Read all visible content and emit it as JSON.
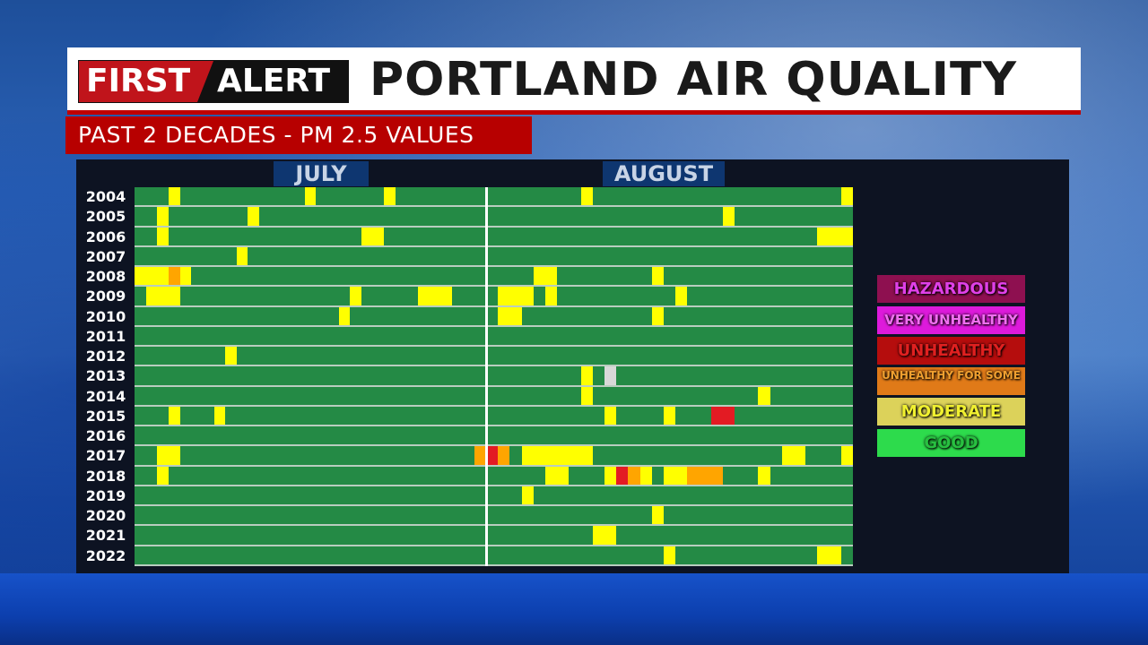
{
  "header": {
    "logo_first": "FIRST",
    "logo_alert": "ALERT",
    "title": "PORTLAND AIR QUALITY",
    "subtitle": "PAST 2 DECADES - PM 2.5 VALUES"
  },
  "chart_data": {
    "type": "heatmap",
    "title": "PORTLAND AIR QUALITY",
    "subtitle": "PAST 2 DECADES - PM 2.5 VALUES",
    "x_groups": [
      "JULY",
      "AUGUST"
    ],
    "x_range": [
      "Jul 1",
      "Aug 31"
    ],
    "default_level": "good",
    "levels": [
      {
        "key": "hazardous",
        "label": "HAZARDOUS",
        "color": "#8e1050",
        "text": "#e040e8"
      },
      {
        "key": "very_unhealthy",
        "label": "VERY UNHEALTHY",
        "color": "#dd1adb",
        "text": "#f070f0"
      },
      {
        "key": "unhealthy",
        "label": "UNHEALTHY",
        "color": "#b50d0d",
        "text": "#e02020"
      },
      {
        "key": "usg",
        "label": "UNHEALTHY FOR SOME",
        "color": "#e07a18",
        "text": "#f0a030"
      },
      {
        "key": "moderate",
        "label": "MODERATE",
        "color": "#dcd25a",
        "text": "#f0f030"
      },
      {
        "key": "good",
        "label": "GOOD",
        "color": "#2ddb4c",
        "text": "#28c040"
      }
    ],
    "cell_colors": {
      "good": "#248a45",
      "moderate": "#ffff00",
      "usg": "#ffa500",
      "unhealthy": "#e31b23",
      "nodata": "#d8d8d8"
    },
    "rows": [
      {
        "year": "2004",
        "events": [
          [
            "Jul",
            4,
            1,
            "moderate"
          ],
          [
            "Jul",
            16,
            1,
            "moderate"
          ],
          [
            "Jul",
            23,
            1,
            "moderate"
          ],
          [
            "Aug",
            9,
            1,
            "moderate"
          ],
          [
            "Aug",
            31,
            1,
            "moderate"
          ]
        ]
      },
      {
        "year": "2005",
        "events": [
          [
            "Jul",
            3,
            1,
            "moderate"
          ],
          [
            "Jul",
            11,
            1,
            "moderate"
          ],
          [
            "Aug",
            21,
            1,
            "moderate"
          ]
        ]
      },
      {
        "year": "2006",
        "events": [
          [
            "Jul",
            3,
            1,
            "moderate"
          ],
          [
            "Jul",
            21,
            2,
            "moderate"
          ],
          [
            "Aug",
            29,
            3,
            "moderate"
          ]
        ]
      },
      {
        "year": "2007",
        "events": [
          [
            "Jul",
            10,
            1,
            "moderate"
          ]
        ]
      },
      {
        "year": "2008",
        "events": [
          [
            "Jul",
            1,
            3,
            "moderate"
          ],
          [
            "Jul",
            4,
            1,
            "usg"
          ],
          [
            "Jul",
            5,
            1,
            "moderate"
          ],
          [
            "Aug",
            5,
            2,
            "moderate"
          ],
          [
            "Aug",
            15,
            1,
            "moderate"
          ]
        ]
      },
      {
        "year": "2009",
        "events": [
          [
            "Jul",
            2,
            3,
            "moderate"
          ],
          [
            "Jul",
            20,
            1,
            "moderate"
          ],
          [
            "Jul",
            26,
            3,
            "moderate"
          ],
          [
            "Aug",
            2,
            3,
            "moderate"
          ],
          [
            "Aug",
            6,
            1,
            "moderate"
          ],
          [
            "Aug",
            17,
            1,
            "moderate"
          ]
        ]
      },
      {
        "year": "2010",
        "events": [
          [
            "Jul",
            19,
            1,
            "moderate"
          ],
          [
            "Aug",
            2,
            2,
            "moderate"
          ],
          [
            "Aug",
            15,
            1,
            "moderate"
          ]
        ]
      },
      {
        "year": "2011",
        "events": []
      },
      {
        "year": "2012",
        "events": [
          [
            "Jul",
            9,
            1,
            "moderate"
          ]
        ]
      },
      {
        "year": "2013",
        "events": [
          [
            "Aug",
            9,
            1,
            "moderate"
          ],
          [
            "Aug",
            11,
            1,
            "nodata"
          ]
        ]
      },
      {
        "year": "2014",
        "events": [
          [
            "Aug",
            9,
            1,
            "moderate"
          ],
          [
            "Aug",
            24,
            1,
            "moderate"
          ]
        ]
      },
      {
        "year": "2015",
        "events": [
          [
            "Jul",
            4,
            1,
            "moderate"
          ],
          [
            "Jul",
            8,
            1,
            "moderate"
          ],
          [
            "Aug",
            11,
            1,
            "moderate"
          ],
          [
            "Aug",
            16,
            1,
            "moderate"
          ],
          [
            "Aug",
            20,
            2,
            "unhealthy"
          ]
        ]
      },
      {
        "year": "2016",
        "events": []
      },
      {
        "year": "2017",
        "events": [
          [
            "Jul",
            3,
            2,
            "moderate"
          ],
          [
            "Jul",
            31,
            1,
            "usg"
          ],
          [
            "Aug",
            1,
            1,
            "unhealthy"
          ],
          [
            "Aug",
            2,
            1,
            "usg"
          ],
          [
            "Aug",
            4,
            6,
            "moderate"
          ],
          [
            "Aug",
            26,
            2,
            "moderate"
          ],
          [
            "Aug",
            31,
            1,
            "moderate"
          ]
        ]
      },
      {
        "year": "2018",
        "events": [
          [
            "Jul",
            3,
            1,
            "moderate"
          ],
          [
            "Aug",
            6,
            2,
            "moderate"
          ],
          [
            "Aug",
            11,
            1,
            "moderate"
          ],
          [
            "Aug",
            12,
            1,
            "unhealthy"
          ],
          [
            "Aug",
            13,
            1,
            "usg"
          ],
          [
            "Aug",
            14,
            1,
            "moderate"
          ],
          [
            "Aug",
            16,
            2,
            "moderate"
          ],
          [
            "Aug",
            18,
            3,
            "usg"
          ],
          [
            "Aug",
            24,
            1,
            "moderate"
          ]
        ]
      },
      {
        "year": "2019",
        "events": [
          [
            "Aug",
            4,
            1,
            "moderate"
          ]
        ]
      },
      {
        "year": "2020",
        "events": [
          [
            "Aug",
            15,
            1,
            "moderate"
          ]
        ]
      },
      {
        "year": "2021",
        "events": [
          [
            "Aug",
            10,
            2,
            "moderate"
          ]
        ]
      },
      {
        "year": "2022",
        "events": [
          [
            "Aug",
            16,
            1,
            "moderate"
          ],
          [
            "Aug",
            29,
            2,
            "moderate"
          ]
        ]
      }
    ]
  }
}
